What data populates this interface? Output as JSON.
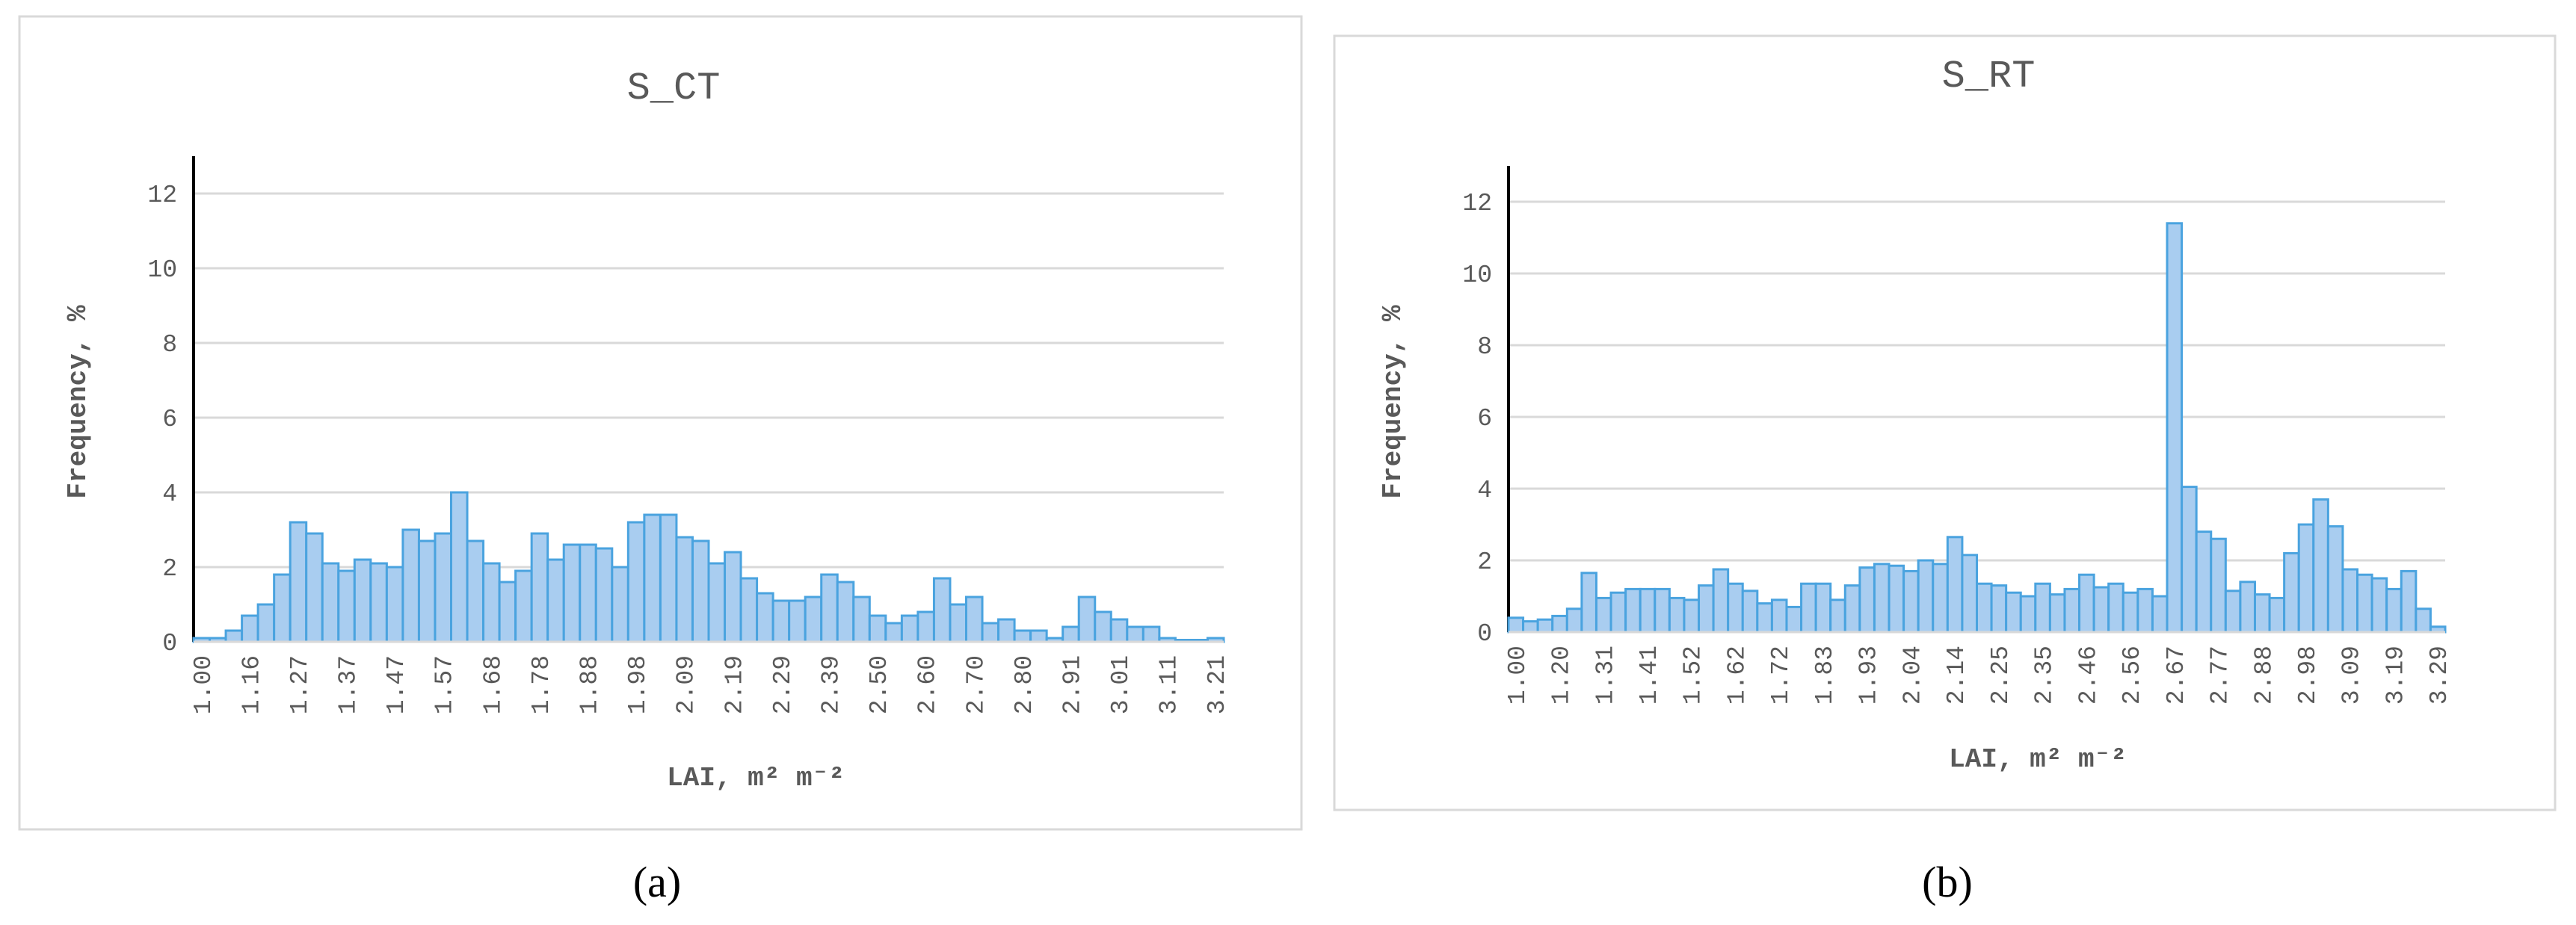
{
  "chart_data": [
    {
      "type": "bar",
      "title": "S_CT",
      "ylabel": "Frequency, %",
      "xlabel": "LAI,  m² m⁻²",
      "categories": [
        "1.00",
        null,
        null,
        "1.16",
        null,
        null,
        "1.27",
        null,
        null,
        "1.37",
        null,
        null,
        "1.47",
        null,
        null,
        "1.57",
        null,
        null,
        "1.68",
        null,
        null,
        "1.78",
        null,
        null,
        "1.88",
        null,
        null,
        "1.98",
        null,
        null,
        "2.09",
        null,
        null,
        "2.19",
        null,
        null,
        "2.29",
        null,
        null,
        "2.39",
        null,
        null,
        "2.50",
        null,
        null,
        "2.60",
        null,
        null,
        "2.70",
        null,
        null,
        "2.80",
        null,
        null,
        "2.91",
        null,
        null,
        "3.01",
        null,
        null,
        "3.11",
        null,
        null,
        "3.21"
      ],
      "values": [
        0.1,
        0.1,
        0.3,
        0.7,
        1.0,
        1.8,
        3.2,
        2.9,
        2.1,
        1.9,
        2.2,
        2.1,
        2.0,
        3.0,
        2.7,
        2.9,
        4.0,
        2.7,
        2.1,
        1.6,
        1.9,
        2.9,
        2.2,
        2.6,
        2.6,
        2.5,
        2.0,
        3.2,
        3.4,
        3.4,
        2.8,
        2.7,
        2.1,
        2.4,
        1.7,
        1.3,
        1.1,
        1.1,
        1.2,
        1.8,
        1.6,
        1.2,
        0.7,
        0.5,
        0.7,
        0.8,
        1.7,
        1.0,
        1.2,
        0.5,
        0.6,
        0.3,
        0.3,
        0.1,
        0.4,
        1.2,
        0.8,
        0.6,
        0.4,
        0.4,
        0.1,
        0.05,
        0.05,
        0.1
      ],
      "color": "#a9cdf0",
      "edgecolor": "#4aa3df",
      "ylim": [
        0,
        13
      ],
      "yticks": [
        0,
        2,
        4,
        6,
        8,
        10,
        12
      ],
      "grid": true
    },
    {
      "type": "bar",
      "title": "S_RT",
      "ylabel": "Frequency, %",
      "xlabel": "LAI,  m² m⁻²",
      "categories": [
        "1.00",
        null,
        null,
        "1.20",
        null,
        null,
        "1.31",
        null,
        null,
        "1.41",
        null,
        null,
        "1.52",
        null,
        null,
        "1.62",
        null,
        null,
        "1.72",
        null,
        null,
        "1.83",
        null,
        null,
        "1.93",
        null,
        null,
        "2.04",
        null,
        null,
        "2.14",
        null,
        null,
        "2.25",
        null,
        null,
        "2.35",
        null,
        null,
        "2.46",
        null,
        null,
        "2.56",
        null,
        null,
        "2.67",
        null,
        null,
        "2.77",
        null,
        null,
        "2.88",
        null,
        null,
        "2.98",
        null,
        null,
        "3.09",
        null,
        null,
        "3.19",
        null,
        null,
        "3.29"
      ],
      "values": [
        0.4,
        0.3,
        0.35,
        0.45,
        0.65,
        1.65,
        0.95,
        1.1,
        1.2,
        1.2,
        1.2,
        0.95,
        0.9,
        1.3,
        1.75,
        1.35,
        1.15,
        0.8,
        0.9,
        0.7,
        1.35,
        1.35,
        0.9,
        1.3,
        1.8,
        1.9,
        1.85,
        1.7,
        2.0,
        1.9,
        2.65,
        2.15,
        1.35,
        1.3,
        1.1,
        1.0,
        1.35,
        1.05,
        1.2,
        1.6,
        1.25,
        1.35,
        1.1,
        1.2,
        1.0,
        11.4,
        4.05,
        2.8,
        2.6,
        1.15,
        1.4,
        1.05,
        0.95,
        2.2,
        3.0,
        3.7,
        2.95,
        1.75,
        1.6,
        1.5,
        1.2,
        1.7,
        0.65,
        0.15
      ],
      "color": "#a9cdf0",
      "edgecolor": "#4aa3df",
      "ylim": [
        0,
        13
      ],
      "yticks": [
        0,
        2,
        4,
        6,
        8,
        10,
        12
      ],
      "grid": true
    }
  ],
  "captions": [
    "(a)",
    "(b)"
  ]
}
